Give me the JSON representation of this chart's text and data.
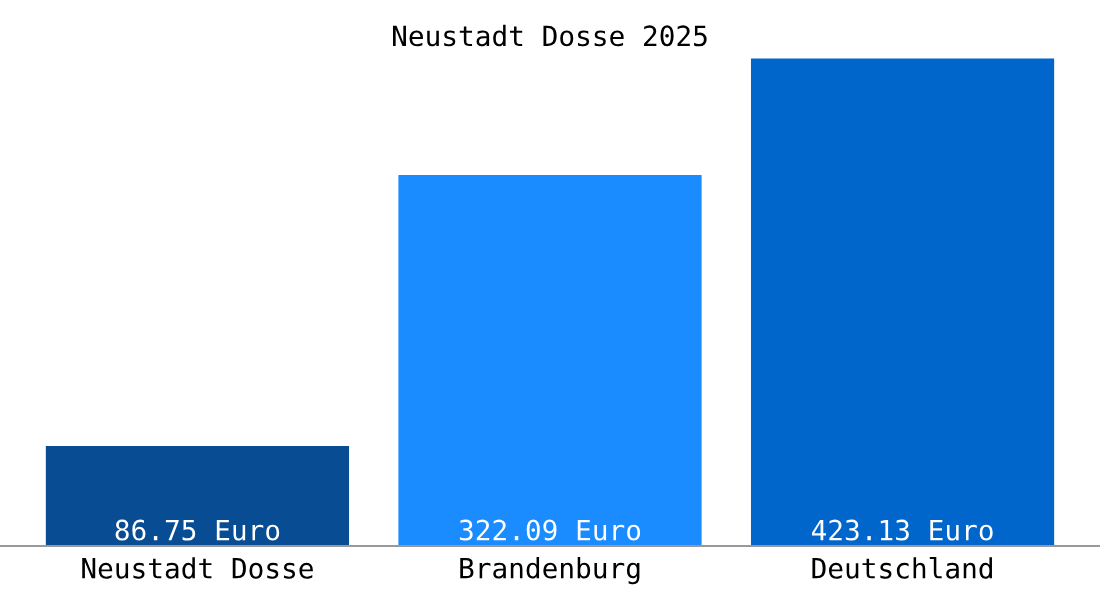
{
  "chart_data": {
    "type": "bar",
    "title": "Neustadt Dosse 2025",
    "categories": [
      "Neustadt Dosse",
      "Brandenburg",
      "Deutschland"
    ],
    "values": [
      86.75,
      322.09,
      423.13
    ],
    "colors": [
      "#084c94",
      "#1a8cff",
      "#0066cc"
    ],
    "value_labels": [
      "86.75 Euro",
      "322.09 Euro",
      "423.13 Euro"
    ],
    "grid": false
  }
}
